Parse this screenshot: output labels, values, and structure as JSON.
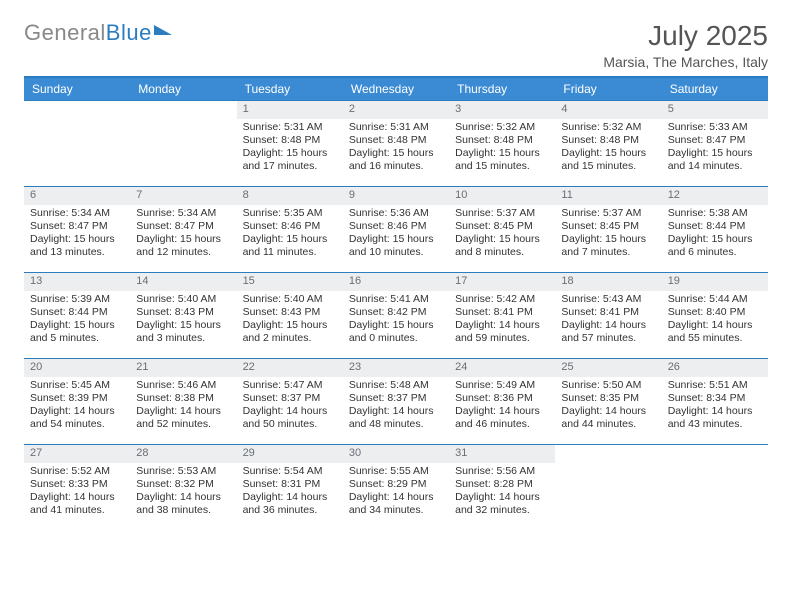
{
  "brand": {
    "part1": "General",
    "part2": "Blue"
  },
  "title": "July 2025",
  "location": "Marsia, The Marches, Italy",
  "colors": {
    "header_bg": "#3b8bd4",
    "accent": "#2b7cc0",
    "daynum_bg": "#eceef0",
    "text": "#333333"
  },
  "typography": {
    "body_fontsize": 10.5,
    "header_fontsize": 12,
    "title_fontsize": 28
  },
  "weekdays": [
    "Sunday",
    "Monday",
    "Tuesday",
    "Wednesday",
    "Thursday",
    "Friday",
    "Saturday"
  ],
  "weeks": [
    [
      null,
      null,
      {
        "n": "1",
        "sr": "5:31 AM",
        "ss": "8:48 PM",
        "dl": "15 hours and 17 minutes."
      },
      {
        "n": "2",
        "sr": "5:31 AM",
        "ss": "8:48 PM",
        "dl": "15 hours and 16 minutes."
      },
      {
        "n": "3",
        "sr": "5:32 AM",
        "ss": "8:48 PM",
        "dl": "15 hours and 15 minutes."
      },
      {
        "n": "4",
        "sr": "5:32 AM",
        "ss": "8:48 PM",
        "dl": "15 hours and 15 minutes."
      },
      {
        "n": "5",
        "sr": "5:33 AM",
        "ss": "8:47 PM",
        "dl": "15 hours and 14 minutes."
      }
    ],
    [
      {
        "n": "6",
        "sr": "5:34 AM",
        "ss": "8:47 PM",
        "dl": "15 hours and 13 minutes."
      },
      {
        "n": "7",
        "sr": "5:34 AM",
        "ss": "8:47 PM",
        "dl": "15 hours and 12 minutes."
      },
      {
        "n": "8",
        "sr": "5:35 AM",
        "ss": "8:46 PM",
        "dl": "15 hours and 11 minutes."
      },
      {
        "n": "9",
        "sr": "5:36 AM",
        "ss": "8:46 PM",
        "dl": "15 hours and 10 minutes."
      },
      {
        "n": "10",
        "sr": "5:37 AM",
        "ss": "8:45 PM",
        "dl": "15 hours and 8 minutes."
      },
      {
        "n": "11",
        "sr": "5:37 AM",
        "ss": "8:45 PM",
        "dl": "15 hours and 7 minutes."
      },
      {
        "n": "12",
        "sr": "5:38 AM",
        "ss": "8:44 PM",
        "dl": "15 hours and 6 minutes."
      }
    ],
    [
      {
        "n": "13",
        "sr": "5:39 AM",
        "ss": "8:44 PM",
        "dl": "15 hours and 5 minutes."
      },
      {
        "n": "14",
        "sr": "5:40 AM",
        "ss": "8:43 PM",
        "dl": "15 hours and 3 minutes."
      },
      {
        "n": "15",
        "sr": "5:40 AM",
        "ss": "8:43 PM",
        "dl": "15 hours and 2 minutes."
      },
      {
        "n": "16",
        "sr": "5:41 AM",
        "ss": "8:42 PM",
        "dl": "15 hours and 0 minutes."
      },
      {
        "n": "17",
        "sr": "5:42 AM",
        "ss": "8:41 PM",
        "dl": "14 hours and 59 minutes."
      },
      {
        "n": "18",
        "sr": "5:43 AM",
        "ss": "8:41 PM",
        "dl": "14 hours and 57 minutes."
      },
      {
        "n": "19",
        "sr": "5:44 AM",
        "ss": "8:40 PM",
        "dl": "14 hours and 55 minutes."
      }
    ],
    [
      {
        "n": "20",
        "sr": "5:45 AM",
        "ss": "8:39 PM",
        "dl": "14 hours and 54 minutes."
      },
      {
        "n": "21",
        "sr": "5:46 AM",
        "ss": "8:38 PM",
        "dl": "14 hours and 52 minutes."
      },
      {
        "n": "22",
        "sr": "5:47 AM",
        "ss": "8:37 PM",
        "dl": "14 hours and 50 minutes."
      },
      {
        "n": "23",
        "sr": "5:48 AM",
        "ss": "8:37 PM",
        "dl": "14 hours and 48 minutes."
      },
      {
        "n": "24",
        "sr": "5:49 AM",
        "ss": "8:36 PM",
        "dl": "14 hours and 46 minutes."
      },
      {
        "n": "25",
        "sr": "5:50 AM",
        "ss": "8:35 PM",
        "dl": "14 hours and 44 minutes."
      },
      {
        "n": "26",
        "sr": "5:51 AM",
        "ss": "8:34 PM",
        "dl": "14 hours and 43 minutes."
      }
    ],
    [
      {
        "n": "27",
        "sr": "5:52 AM",
        "ss": "8:33 PM",
        "dl": "14 hours and 41 minutes."
      },
      {
        "n": "28",
        "sr": "5:53 AM",
        "ss": "8:32 PM",
        "dl": "14 hours and 38 minutes."
      },
      {
        "n": "29",
        "sr": "5:54 AM",
        "ss": "8:31 PM",
        "dl": "14 hours and 36 minutes."
      },
      {
        "n": "30",
        "sr": "5:55 AM",
        "ss": "8:29 PM",
        "dl": "14 hours and 34 minutes."
      },
      {
        "n": "31",
        "sr": "5:56 AM",
        "ss": "8:28 PM",
        "dl": "14 hours and 32 minutes."
      },
      null,
      null
    ]
  ],
  "labels": {
    "sunrise": "Sunrise:",
    "sunset": "Sunset:",
    "daylight": "Daylight:"
  }
}
